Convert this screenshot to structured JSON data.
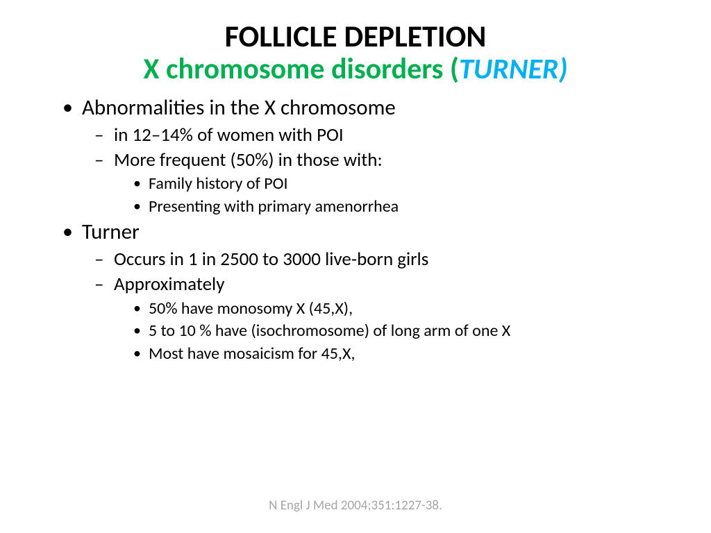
{
  "title": {
    "main": "FOLLICLE DEPLETION",
    "sub_green_a": "X chromosome disorders (",
    "sub_blue": "TURNER)",
    "colors": {
      "main": "#000000",
      "green": "#00b050",
      "blue": "#00b0f0"
    },
    "fontsize_main": 44,
    "fontsize_sub": 42
  },
  "bullets": {
    "item1": "Abnormalities in the X chromosome",
    "item1_sub1": "in 12–14% of women with POI",
    "item1_sub2": "More frequent (50%) in those with:",
    "item1_sub2_a": "Family history of POI",
    "item1_sub2_b": "Presenting with primary amenorrhea",
    "item2": "Turner",
    "item2_sub1": "Occurs in 1 in 2500 to 3000 live-born girls",
    "item2_sub2": "Approximately",
    "item2_sub2_a": "50% have monosomy X (45,X),",
    "item2_sub2_b": "5 to 10 % have (isochromosome) of  long arm of one X",
    "item2_sub2_c": "Most have mosaicism for 45,X,"
  },
  "citation": "N Engl J Med 2004;351:1227-38.",
  "style": {
    "background": "#ffffff",
    "text_color": "#000000",
    "citation_color": "#a6a6a6",
    "font_family": "Calibri",
    "lvl1_fontsize": 31,
    "lvl2_fontsize": 27,
    "lvl3_fontsize": 24,
    "citation_fontsize": 19
  }
}
